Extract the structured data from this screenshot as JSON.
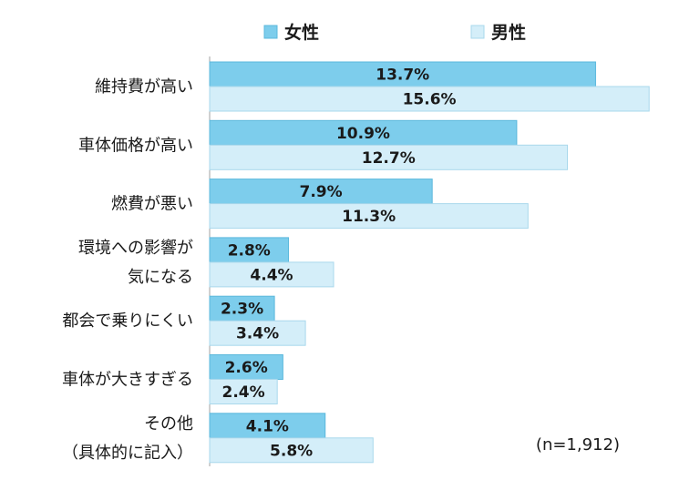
{
  "chart_data": {
    "type": "bar",
    "orientation": "horizontal",
    "categories": [
      [
        "維持費が高い"
      ],
      [
        "車体価格が高い"
      ],
      [
        "燃費が悪い"
      ],
      [
        "環境への影響が",
        "気になる"
      ],
      [
        "都会で乗りにくい"
      ],
      [
        "車体が大きすぎる"
      ],
      [
        "その他",
        "（具体的に記入）"
      ]
    ],
    "series": [
      {
        "name": "女性",
        "values": [
          13.7,
          10.9,
          7.9,
          2.8,
          2.3,
          2.6,
          4.1
        ],
        "labels": [
          "13.7%",
          "10.9%",
          "7.9%",
          "2.8%",
          "2.3%",
          "2.6%",
          "4.1%"
        ],
        "color": "#7dcdec"
      },
      {
        "name": "男性",
        "values": [
          15.6,
          12.7,
          11.3,
          4.4,
          3.4,
          2.4,
          5.8
        ],
        "labels": [
          "15.6%",
          "12.7%",
          "11.3%",
          "4.4%",
          "3.4%",
          "2.4%",
          "5.8%"
        ],
        "color": "#d4eef9"
      }
    ],
    "legend_position": "top",
    "xlim": [
      0,
      16.5
    ],
    "grid": false
  },
  "note": "(n=1,912)"
}
